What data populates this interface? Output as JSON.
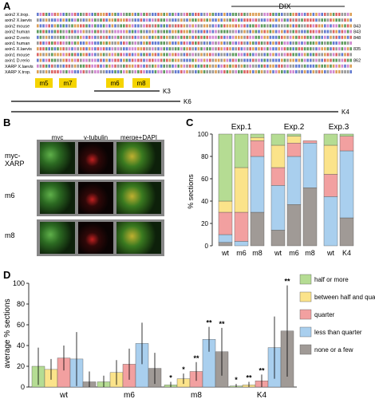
{
  "panel_labels": {
    "a": "A",
    "b": "B",
    "c": "C",
    "d": "D"
  },
  "alignment": {
    "domain_label": "DIX",
    "row_names": [
      "axin2 X.trop.",
      "axin2 X.laevis",
      "axin2 mouse",
      "axin2 human",
      "axin2 D.rerio",
      "axin1 human",
      "axin1 X.laevis",
      "axin1 mouse",
      "axin1 D.rerio",
      "XARP X.laevis",
      "XARP X.trop."
    ],
    "row_numbers": [
      "",
      "",
      "843",
      "843",
      "848",
      "",
      "835",
      "",
      "862",
      "",
      ""
    ],
    "mutations": [
      "m5",
      "m7",
      "m6",
      "m8"
    ],
    "deletions": [
      "K3",
      "K6",
      "K4"
    ]
  },
  "micro": {
    "col_headers": [
      "myc",
      "γ-tubulin",
      "merge+DAPI"
    ],
    "row_labels": [
      "myc-\nXARP",
      "m6",
      "m8"
    ]
  },
  "chart_data": [
    {
      "type": "bar",
      "title": "",
      "ylabel": "% sections",
      "ylim": [
        0,
        100
      ],
      "yticks": [
        0,
        20,
        40,
        60,
        80,
        100
      ],
      "grid": false,
      "group_labels": [
        "Exp.1",
        "Exp.2",
        "Exp.3"
      ],
      "categories": [
        "wt",
        "m6",
        "m8",
        "wt",
        "m6",
        "m8",
        "wt",
        "K4"
      ],
      "stacked": true,
      "series": [
        {
          "name": "none or a few",
          "color": "#a09a96",
          "values": [
            3,
            0,
            30,
            14,
            37,
            52,
            0,
            25
          ]
        },
        {
          "name": "less than quarter",
          "color": "#a9cfee",
          "values": [
            7,
            4,
            50,
            40,
            43,
            40,
            44,
            60
          ]
        },
        {
          "name": "quarter",
          "color": "#f2a0a0",
          "values": [
            20,
            26,
            14,
            16,
            12,
            2,
            20,
            13
          ]
        },
        {
          "name": "between half and quarter",
          "color": "#fbe38a",
          "values": [
            10,
            40,
            3,
            20,
            6,
            0,
            26,
            0
          ]
        },
        {
          "name": "half or more",
          "color": "#b5dc93",
          "values": [
            60,
            30,
            3,
            10,
            2,
            0,
            10,
            2
          ]
        }
      ]
    },
    {
      "type": "bar",
      "title": "",
      "ylabel": "average % sections",
      "ylim": [
        0,
        100
      ],
      "yticks": [
        0,
        20,
        40,
        60,
        80,
        100
      ],
      "grid": false,
      "legend_position": "right",
      "categories": [
        "wt",
        "m6",
        "m8",
        "K4"
      ],
      "series": [
        {
          "name": "half or more",
          "color": "#b5dc93",
          "values": [
            20,
            5,
            2,
            1
          ],
          "errors": [
            18,
            6,
            3,
            2
          ]
        },
        {
          "name": "between half and quarter",
          "color": "#fbe38a",
          "values": [
            17,
            14,
            8,
            2
          ],
          "errors": [
            10,
            12,
            5,
            3
          ]
        },
        {
          "name": "quarter",
          "color": "#f2a0a0",
          "values": [
            28,
            22,
            15,
            6
          ],
          "errors": [
            12,
            15,
            9,
            6
          ]
        },
        {
          "name": "less than quarter",
          "color": "#a9cfee",
          "values": [
            27,
            42,
            46,
            38
          ],
          "errors": [
            26,
            20,
            12,
            30
          ]
        },
        {
          "name": "none or a few",
          "color": "#a09a96",
          "values": [
            5,
            18,
            34,
            54
          ],
          "errors": [
            10,
            15,
            23,
            44
          ]
        }
      ],
      "significance": [
        {
          "category": "m8",
          "series": "half or more",
          "mark": "*"
        },
        {
          "category": "m8",
          "series": "between half and quarter",
          "mark": "*"
        },
        {
          "category": "m8",
          "series": "quarter",
          "mark": "**"
        },
        {
          "category": "m8",
          "series": "less than quarter",
          "mark": "**"
        },
        {
          "category": "m8",
          "series": "none or a few",
          "mark": "**"
        },
        {
          "category": "K4",
          "series": "half or more",
          "mark": "*"
        },
        {
          "category": "K4",
          "series": "between half and quarter",
          "mark": "**"
        },
        {
          "category": "K4",
          "series": "quarter",
          "mark": "**"
        },
        {
          "category": "K4",
          "series": "none or a few",
          "mark": "**"
        }
      ]
    }
  ]
}
